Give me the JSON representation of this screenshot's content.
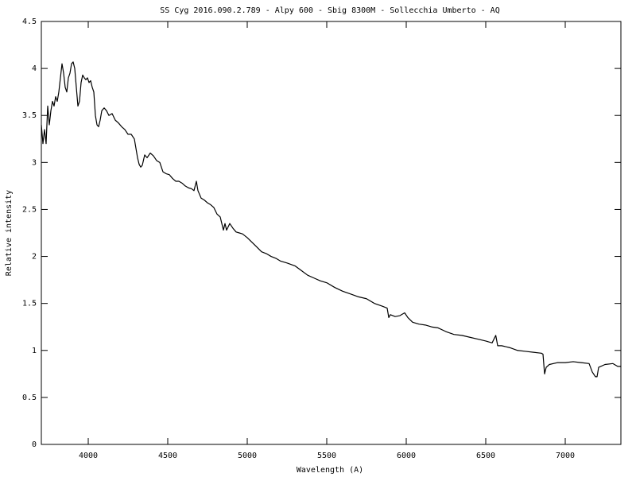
{
  "chart_data": {
    "type": "line",
    "title": "SS Cyg 2016.090.2.789 - Alpy 600 - Sbig 8300M  - Sollecchia Umberto - AQ",
    "x_label": "Wavelength (A)",
    "y_label": "Relative intensity",
    "x": [
      3705,
      3715,
      3725,
      3735,
      3745,
      3755,
      3765,
      3775,
      3785,
      3795,
      3805,
      3815,
      3825,
      3835,
      3845,
      3855,
      3865,
      3875,
      3885,
      3895,
      3905,
      3915,
      3925,
      3935,
      3945,
      3955,
      3965,
      3975,
      3985,
      3995,
      4005,
      4015,
      4025,
      4035,
      4045,
      4055,
      4065,
      4075,
      4085,
      4100,
      4115,
      4130,
      4150,
      4170,
      4190,
      4210,
      4230,
      4250,
      4270,
      4290,
      4310,
      4320,
      4330,
      4340,
      4355,
      4370,
      4390,
      4410,
      4430,
      4450,
      4470,
      4490,
      4510,
      4530,
      4550,
      4570,
      4590,
      4610,
      4630,
      4650,
      4665,
      4680,
      4690,
      4710,
      4730,
      4750,
      4770,
      4790,
      4810,
      4830,
      4850,
      4860,
      4870,
      4890,
      4910,
      4930,
      4950,
      4970,
      5000,
      5030,
      5060,
      5090,
      5120,
      5150,
      5180,
      5210,
      5250,
      5300,
      5340,
      5380,
      5420,
      5460,
      5500,
      5550,
      5600,
      5650,
      5700,
      5750,
      5800,
      5850,
      5880,
      5890,
      5900,
      5930,
      5960,
      5990,
      6010,
      6040,
      6080,
      6120,
      6160,
      6200,
      6250,
      6300,
      6350,
      6400,
      6450,
      6500,
      6540,
      6563,
      6575,
      6600,
      6650,
      6700,
      6750,
      6800,
      6850,
      6860,
      6870,
      6880,
      6900,
      6950,
      7000,
      7050,
      7100,
      7150,
      7170,
      7190,
      7200,
      7210,
      7250,
      7300,
      7330,
      7350
    ],
    "series": [
      {
        "color": "#000000",
        "values": [
          3.4,
          3.2,
          3.35,
          3.2,
          3.6,
          3.4,
          3.55,
          3.65,
          3.6,
          3.7,
          3.65,
          3.75,
          3.9,
          4.05,
          3.95,
          3.8,
          3.75,
          3.9,
          3.95,
          4.05,
          4.07,
          4.0,
          3.8,
          3.6,
          3.65,
          3.85,
          3.93,
          3.9,
          3.88,
          3.9,
          3.85,
          3.87,
          3.8,
          3.75,
          3.5,
          3.4,
          3.38,
          3.45,
          3.55,
          3.58,
          3.55,
          3.5,
          3.52,
          3.45,
          3.42,
          3.38,
          3.35,
          3.3,
          3.3,
          3.25,
          3.05,
          2.98,
          2.95,
          2.97,
          3.08,
          3.05,
          3.1,
          3.07,
          3.02,
          3.0,
          2.9,
          2.88,
          2.87,
          2.83,
          2.8,
          2.8,
          2.78,
          2.75,
          2.73,
          2.72,
          2.7,
          2.8,
          2.7,
          2.62,
          2.6,
          2.57,
          2.55,
          2.52,
          2.45,
          2.42,
          2.28,
          2.35,
          2.28,
          2.35,
          2.3,
          2.26,
          2.25,
          2.24,
          2.2,
          2.15,
          2.1,
          2.05,
          2.03,
          2.0,
          1.98,
          1.95,
          1.93,
          1.9,
          1.85,
          1.8,
          1.77,
          1.74,
          1.72,
          1.67,
          1.63,
          1.6,
          1.57,
          1.55,
          1.5,
          1.47,
          1.45,
          1.35,
          1.38,
          1.36,
          1.37,
          1.4,
          1.35,
          1.3,
          1.28,
          1.27,
          1.25,
          1.24,
          1.2,
          1.17,
          1.16,
          1.14,
          1.12,
          1.1,
          1.08,
          1.16,
          1.05,
          1.05,
          1.03,
          1.0,
          0.99,
          0.98,
          0.97,
          0.96,
          0.75,
          0.82,
          0.85,
          0.87,
          0.87,
          0.88,
          0.87,
          0.86,
          0.77,
          0.72,
          0.72,
          0.82,
          0.85,
          0.86,
          0.83,
          0.83
        ]
      }
    ],
    "xlim": [
      3705,
      7350
    ],
    "xticks": [
      4000,
      4500,
      5000,
      5500,
      6000,
      6500,
      7000
    ],
    "ylim": [
      0,
      4.5
    ],
    "yticks": [
      0,
      0.5,
      1,
      1.5,
      2,
      2.5,
      3,
      3.5,
      4,
      4.5
    ]
  }
}
